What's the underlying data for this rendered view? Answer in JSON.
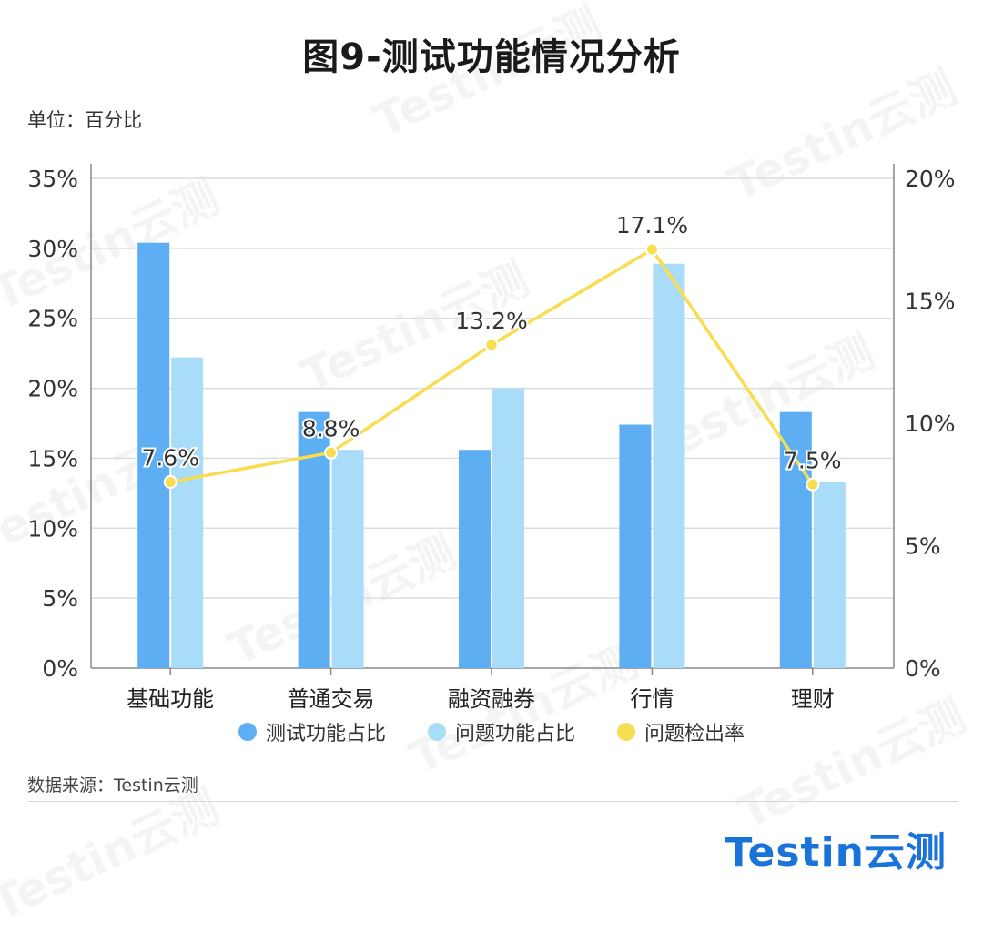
{
  "title": "图9-测试功能情况分析",
  "unit_label": "单位：百分比",
  "source_label": "数据来源：Testin云测",
  "brand_text": "Testin云测",
  "watermark_text": "Testin云测",
  "colors": {
    "bar_test": "#5daef2",
    "bar_issue": "#a9dcf8",
    "line": "#f7dd4f",
    "grid": "#dcdcdc",
    "axis": "#888888"
  },
  "chart_data": {
    "type": "bar",
    "categories": [
      "基础功能",
      "普通交易",
      "融资融券",
      "行情",
      "理财"
    ],
    "series": [
      {
        "name": "测试功能占比",
        "type": "bar",
        "axis": "left",
        "values": [
          30.4,
          18.3,
          15.6,
          17.4,
          18.3
        ]
      },
      {
        "name": "问题功能占比",
        "type": "bar",
        "axis": "left",
        "values": [
          22.2,
          15.6,
          20.0,
          28.9,
          13.3
        ]
      },
      {
        "name": "问题检出率",
        "type": "line",
        "axis": "right",
        "values": [
          7.6,
          8.8,
          13.2,
          17.1,
          7.5
        ],
        "labels": [
          "7.6%",
          "8.8%",
          "13.2%",
          "17.1%",
          "7.5%"
        ]
      }
    ],
    "y_left": {
      "min": 0,
      "max": 35,
      "ticks": [
        "0%",
        "5%",
        "10%",
        "15%",
        "20%",
        "25%",
        "30%",
        "35%"
      ]
    },
    "y_right": {
      "min": 0,
      "max": 20,
      "ticks": [
        "0%",
        "5%",
        "10%",
        "15%",
        "20%"
      ]
    },
    "grid": true,
    "legend_position": "bottom"
  }
}
